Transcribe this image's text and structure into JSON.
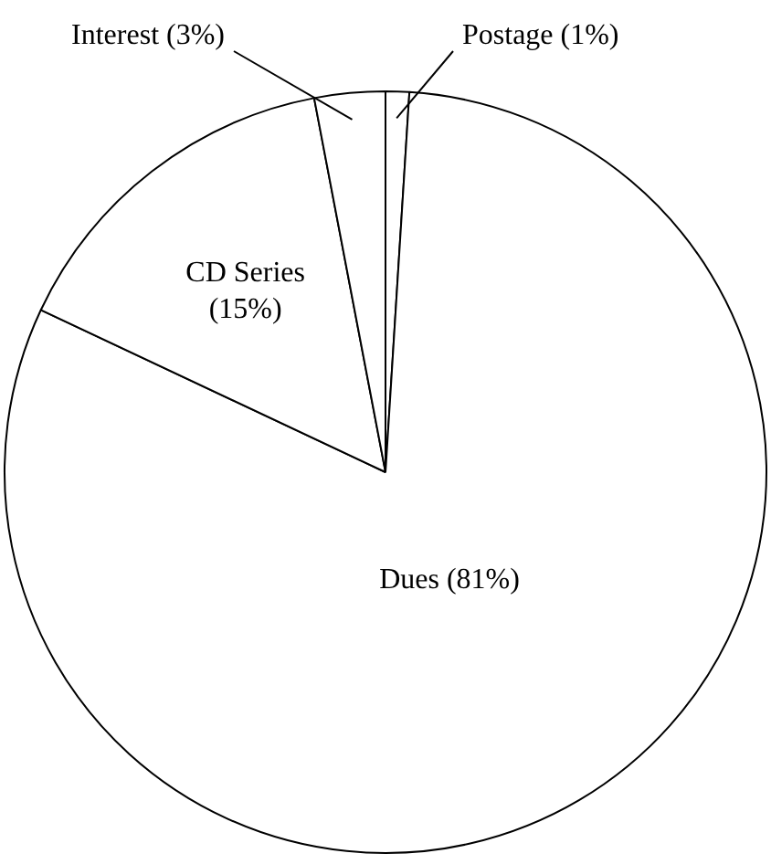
{
  "chart_data": {
    "type": "pie",
    "categories": [
      "Postage",
      "Dues",
      "CD Series",
      "Interest"
    ],
    "values": [
      1,
      81,
      15,
      3
    ],
    "value_labels": [
      "(1%)",
      "(81%)",
      "(15%)",
      "(3%)"
    ],
    "colors": [
      "#ffffff",
      "#ffffff",
      "#ffffff",
      "#ffffff"
    ],
    "legend": false
  }
}
